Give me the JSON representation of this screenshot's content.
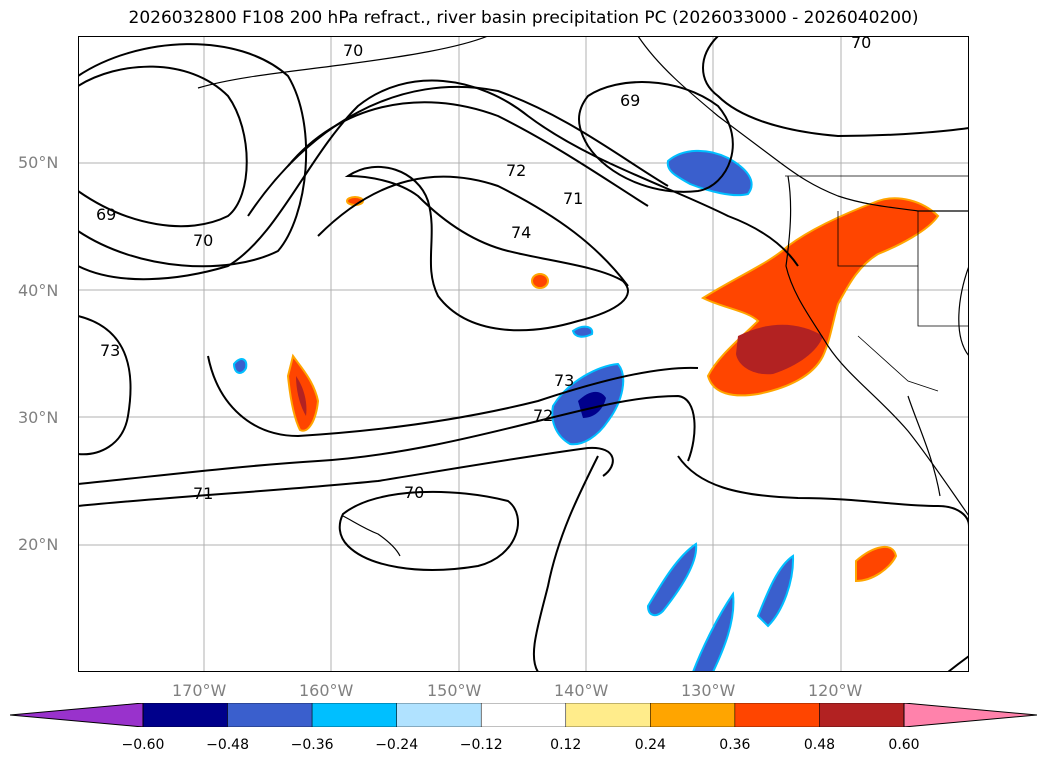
{
  "title": "2026032800 F108 200 hPa refract., river basin precipitation PC (2026033000 - 2026040200)",
  "lat_labels": [
    "50°N",
    "40°N",
    "30°N",
    "20°N"
  ],
  "lon_labels": [
    "170°W",
    "160°W",
    "150°W",
    "140°W",
    "130°W",
    "120°W"
  ],
  "contour_labels": [
    "70",
    "70",
    "69",
    "69",
    "72",
    "71",
    "74",
    "70",
    "73",
    "73",
    "72",
    "71",
    "70"
  ],
  "colorbar": {
    "colors": [
      "#9932cc",
      "#00008b",
      "#3a5fcd",
      "#00bfff",
      "#b0e2ff",
      "#ffffff",
      "#ffec8b",
      "#ffa500",
      "#ff4500",
      "#b22222",
      "#ff82ab"
    ],
    "ticks": [
      "−0.60",
      "−0.48",
      "−0.36",
      "−0.24",
      "−0.12",
      "0.12",
      "0.24",
      "0.36",
      "0.48",
      "0.60"
    ]
  }
}
